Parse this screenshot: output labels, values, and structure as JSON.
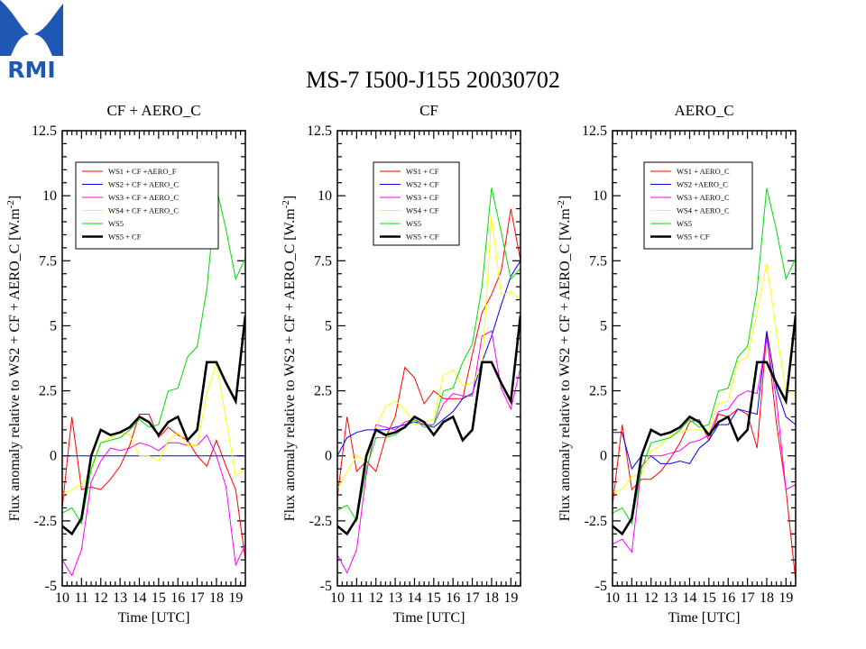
{
  "logo": {
    "text": "RMI",
    "color": "#1f57b5"
  },
  "title": "MS-7 I500-J155 20030702",
  "chart_data": [
    {
      "type": "line",
      "title": "CF + AERO_C",
      "xlabel": "Time [UTC]",
      "ylabel": "Flux anomaly relative to WS2 + CF + AERO_C [W.m",
      "ylabel_sup": "-2",
      "ylabel_end": "]",
      "xlim": [
        10,
        19.5
      ],
      "ylim": [
        -5,
        12.5
      ],
      "xticks": [
        10,
        11,
        12,
        13,
        14,
        15,
        16,
        17,
        18,
        19
      ],
      "xtick_labels": [
        "10",
        "11",
        "12",
        "13",
        "14",
        "15",
        "16",
        "17",
        "18",
        "19"
      ],
      "yticks": [
        -5,
        -2.5,
        0,
        2.5,
        5,
        7.5,
        10,
        12.5
      ],
      "ytick_labels": [
        "-5",
        "-2.5",
        "0",
        "2.5",
        "5",
        "7.5",
        "10",
        "12.5"
      ],
      "grid": false,
      "legend_position": "top-left",
      "x": [
        10,
        10.5,
        11,
        11.5,
        12,
        12.5,
        13,
        13.5,
        14,
        14.5,
        15,
        15.5,
        16,
        16.5,
        17,
        17.5,
        18,
        18.5,
        19,
        19.5
      ],
      "series": [
        {
          "name": "WS1 + CF +AERO_F",
          "color": "#ff0000",
          "width": 1,
          "values": [
            -2,
            1.5,
            -1.3,
            -1.2,
            -1.3,
            -0.9,
            -0.4,
            0.4,
            1.6,
            1.6,
            0.7,
            1.1,
            0.8,
            0.6,
            0,
            -0.4,
            0.6,
            -0.4,
            -1.3,
            -4
          ]
        },
        {
          "name": "WS2 + CF + AERO_C",
          "color": "#0000ff",
          "width": 1,
          "values": [
            0,
            0,
            0,
            0,
            0,
            0,
            0,
            0,
            0,
            0,
            0,
            0,
            0,
            0,
            0,
            0,
            0,
            0,
            0,
            0
          ]
        },
        {
          "name": "WS3 + CF + AERO_C",
          "color": "#ff00ff",
          "width": 1,
          "values": [
            -4,
            -4.6,
            -3.6,
            -1,
            -0.2,
            0.3,
            0.2,
            0.3,
            0.5,
            0.4,
            0.2,
            0.5,
            0.5,
            0.4,
            0.4,
            0.8,
            0,
            -1.2,
            -4.2,
            -3.4
          ]
        },
        {
          "name": "WS4 + CF + AERO_C",
          "color": "#ffff00",
          "width": 1,
          "values": [
            -1.5,
            -1.3,
            -1.1,
            -0.6,
            0.5,
            0.7,
            0.9,
            0.8,
            0,
            0,
            -0.2,
            0.6,
            0.9,
            0.4,
            0.4,
            2.4,
            3.6,
            1.4,
            -0.8,
            -0.5
          ]
        },
        {
          "name": "WS5",
          "color": "#00dd00",
          "width": 1,
          "values": [
            -2.2,
            -2,
            -2.6,
            -0.5,
            0.5,
            0.6,
            0.7,
            1,
            1.4,
            1.1,
            1.2,
            2.5,
            2.6,
            3.8,
            4.2,
            6.4,
            10.3,
            8.7,
            6.8,
            7.6
          ]
        },
        {
          "name": "WS5 + CF",
          "color": "#000000",
          "width": 2.6,
          "values": [
            -2.7,
            -3,
            -2.4,
            0,
            1,
            0.8,
            0.9,
            1.1,
            1.5,
            1.3,
            0.8,
            1.3,
            1.5,
            0.6,
            1,
            3.6,
            3.6,
            2.8,
            2.1,
            5.4
          ]
        }
      ]
    },
    {
      "type": "line",
      "title": "CF",
      "xlabel": "Time [UTC]",
      "ylabel": "Flux anomaly relative to WS2 + CF + AERO_C [W.m",
      "ylabel_sup": "-2",
      "ylabel_end": "]",
      "xlim": [
        10,
        19.5
      ],
      "ylim": [
        -5,
        12.5
      ],
      "xticks": [
        10,
        11,
        12,
        13,
        14,
        15,
        16,
        17,
        18,
        19
      ],
      "xtick_labels": [
        "10",
        "11",
        "12",
        "13",
        "14",
        "15",
        "16",
        "17",
        "18",
        "19"
      ],
      "yticks": [
        -5,
        -2.5,
        0,
        2.5,
        5,
        7.5,
        10,
        12.5
      ],
      "ytick_labels": [
        "-5",
        "-2.5",
        "0",
        "2.5",
        "5",
        "7.5",
        "10",
        "12.5"
      ],
      "grid": false,
      "legend_position": "top-center",
      "x": [
        10,
        10.5,
        11,
        11.5,
        12,
        12.5,
        13,
        13.5,
        14,
        14.5,
        15,
        15.5,
        16,
        16.5,
        17,
        17.5,
        18,
        18.5,
        19,
        19.5
      ],
      "series": [
        {
          "name": "WS1 + CF",
          "color": "#ff0000",
          "width": 1,
          "values": [
            -1.6,
            1.5,
            -0.6,
            -0.2,
            -0.6,
            0.7,
            1.5,
            3.4,
            3,
            2,
            2.5,
            2.2,
            2.2,
            2.2,
            3.9,
            5.5,
            6.2,
            7.1,
            9.5,
            7.5
          ]
        },
        {
          "name": "WS2 + CF",
          "color": "#0000ff",
          "width": 1,
          "values": [
            0,
            0.7,
            0.9,
            1,
            1,
            1,
            1.1,
            1.2,
            1.3,
            1.2,
            1.1,
            1.4,
            1.7,
            2.2,
            2.4,
            3.6,
            4.6,
            5.8,
            6.9,
            7.5
          ]
        },
        {
          "name": "WS3 + CF",
          "color": "#ff00ff",
          "width": 1,
          "values": [
            -3.8,
            -4.5,
            -3.6,
            -0.7,
            1.2,
            1.1,
            1,
            1.3,
            1.4,
            1.2,
            1.2,
            2,
            2.4,
            2.3,
            2.3,
            4.6,
            4.8,
            2.6,
            1.8,
            3.4
          ]
        },
        {
          "name": "WS4 + CF",
          "color": "#ffff00",
          "width": 1,
          "values": [
            -1.3,
            -0.6,
            0,
            -0.2,
            1.1,
            1.9,
            2.1,
            1.8,
            1.2,
            1.3,
            1.4,
            3.1,
            3.3,
            2.7,
            2.8,
            3.4,
            9.2,
            6.2,
            6.3,
            6
          ]
        },
        {
          "name": "WS5",
          "color": "#00dd00",
          "width": 1,
          "values": [
            -2.1,
            -1.9,
            -2.5,
            -0.5,
            0.7,
            0.7,
            0.8,
            1.1,
            1.4,
            1.1,
            1.2,
            2.5,
            2.6,
            3.6,
            4.3,
            6.5,
            10.3,
            8.6,
            6.8,
            7.2
          ]
        },
        {
          "name": "WS5 + CF",
          "color": "#000000",
          "width": 2.6,
          "values": [
            -2.7,
            -3,
            -2.4,
            0,
            1,
            0.8,
            0.9,
            1.1,
            1.5,
            1.3,
            0.8,
            1.3,
            1.5,
            0.6,
            1,
            3.6,
            3.6,
            2.8,
            2.1,
            5.4
          ]
        }
      ]
    },
    {
      "type": "line",
      "title": "AERO_C",
      "xlabel": "Time [UTC]",
      "ylabel": "Flux anomaly relative to WS2 + CF + AERO_C [W.m",
      "ylabel_sup": "-2",
      "ylabel_end": "]",
      "xlim": [
        10,
        19.5
      ],
      "ylim": [
        -5,
        12.5
      ],
      "xticks": [
        10,
        11,
        12,
        13,
        14,
        15,
        16,
        17,
        18,
        19
      ],
      "xtick_labels": [
        "10",
        "11",
        "12",
        "13",
        "14",
        "15",
        "16",
        "17",
        "18",
        "19"
      ],
      "yticks": [
        -5,
        -2.5,
        0,
        2.5,
        5,
        7.5,
        10,
        12.5
      ],
      "ytick_labels": [
        "-5",
        "-2.5",
        "0",
        "2.5",
        "5",
        "7.5",
        "10",
        "12.5"
      ],
      "grid": false,
      "legend_position": "top-center",
      "x": [
        10,
        10.5,
        11,
        11.5,
        12,
        12.5,
        13,
        13.5,
        14,
        14.5,
        15,
        15.5,
        16,
        16.5,
        17,
        17.5,
        18,
        18.5,
        19,
        19.5
      ],
      "series": [
        {
          "name": "WS1 + AERO_C",
          "color": "#ff0000",
          "width": 1,
          "values": [
            -1.9,
            1.2,
            -1.3,
            -0.9,
            -0.9,
            -0.6,
            -0.1,
            0.5,
            1.3,
            1.4,
            0.6,
            1.6,
            1.5,
            1.8,
            1.6,
            0.3,
            4.7,
            1.3,
            -1.3,
            -4.8
          ]
        },
        {
          "name": "WS2 +AERO_C",
          "color": "#0000ff",
          "width": 1,
          "values": [
            0.9,
            0.9,
            -0.5,
            0,
            0,
            -0.3,
            -0.3,
            -0.2,
            -0.3,
            0.3,
            0.6,
            1.2,
            1.2,
            1.8,
            1.7,
            1.6,
            4.8,
            2.6,
            1.5,
            1.2
          ]
        },
        {
          "name": "WS3 + AERO_C",
          "color": "#ff00ff",
          "width": 1,
          "values": [
            -3.4,
            -3.2,
            -3.7,
            -0.4,
            0,
            0,
            0.1,
            0.2,
            0.5,
            0.6,
            0.8,
            1.7,
            1.8,
            2.3,
            2.5,
            2.4,
            4.5,
            2.2,
            -1.3,
            -1.1
          ]
        },
        {
          "name": "WS4 + AERO_C",
          "color": "#ffff00",
          "width": 1,
          "values": [
            -1.4,
            -1.3,
            -0.8,
            -0.7,
            0.2,
            0.4,
            0.8,
            0.9,
            1,
            1,
            1,
            2,
            2.1,
            3.6,
            3.8,
            5.5,
            7.4,
            4.8,
            2.5,
            2.3
          ]
        },
        {
          "name": "WS5",
          "color": "#00dd00",
          "width": 1,
          "values": [
            -2.2,
            -2,
            -2.6,
            -0.5,
            0.5,
            0.6,
            0.7,
            1,
            1.4,
            1.1,
            1.2,
            2.5,
            2.6,
            3.8,
            4.2,
            6.4,
            10.3,
            8.7,
            6.8,
            7.6
          ]
        },
        {
          "name": "WS5 + CF",
          "color": "#000000",
          "width": 2.6,
          "values": [
            -2.7,
            -3,
            -2.4,
            0,
            1,
            0.8,
            0.9,
            1.1,
            1.5,
            1.3,
            0.8,
            1.3,
            1.5,
            0.6,
            1,
            3.6,
            3.6,
            2.8,
            2.1,
            5.4
          ]
        }
      ]
    }
  ]
}
